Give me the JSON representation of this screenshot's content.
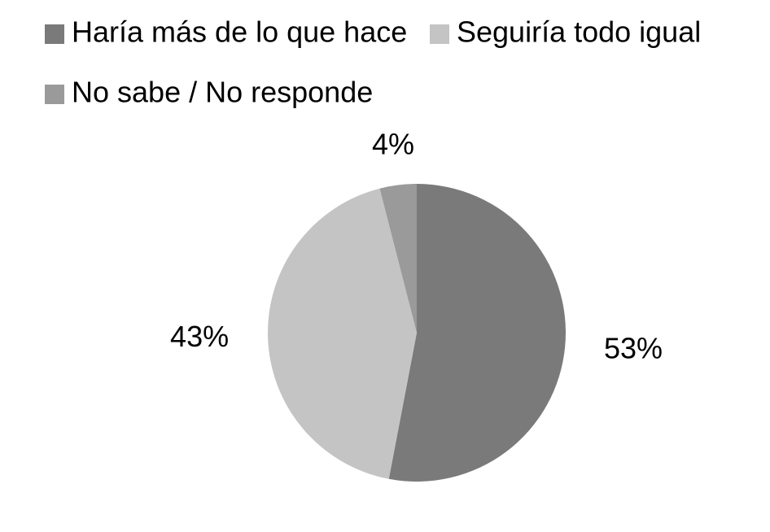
{
  "chart_data": {
    "type": "pie",
    "categories": [
      "Haría más de lo que hace",
      "Seguiría todo igual",
      "No sabe / No responde"
    ],
    "values": [
      53,
      43,
      4
    ],
    "value_labels": [
      "53%",
      "43%",
      "4%"
    ],
    "colors": [
      "#7a7a7a",
      "#c4c4c4",
      "#9a9a9a"
    ],
    "legend": "top"
  }
}
